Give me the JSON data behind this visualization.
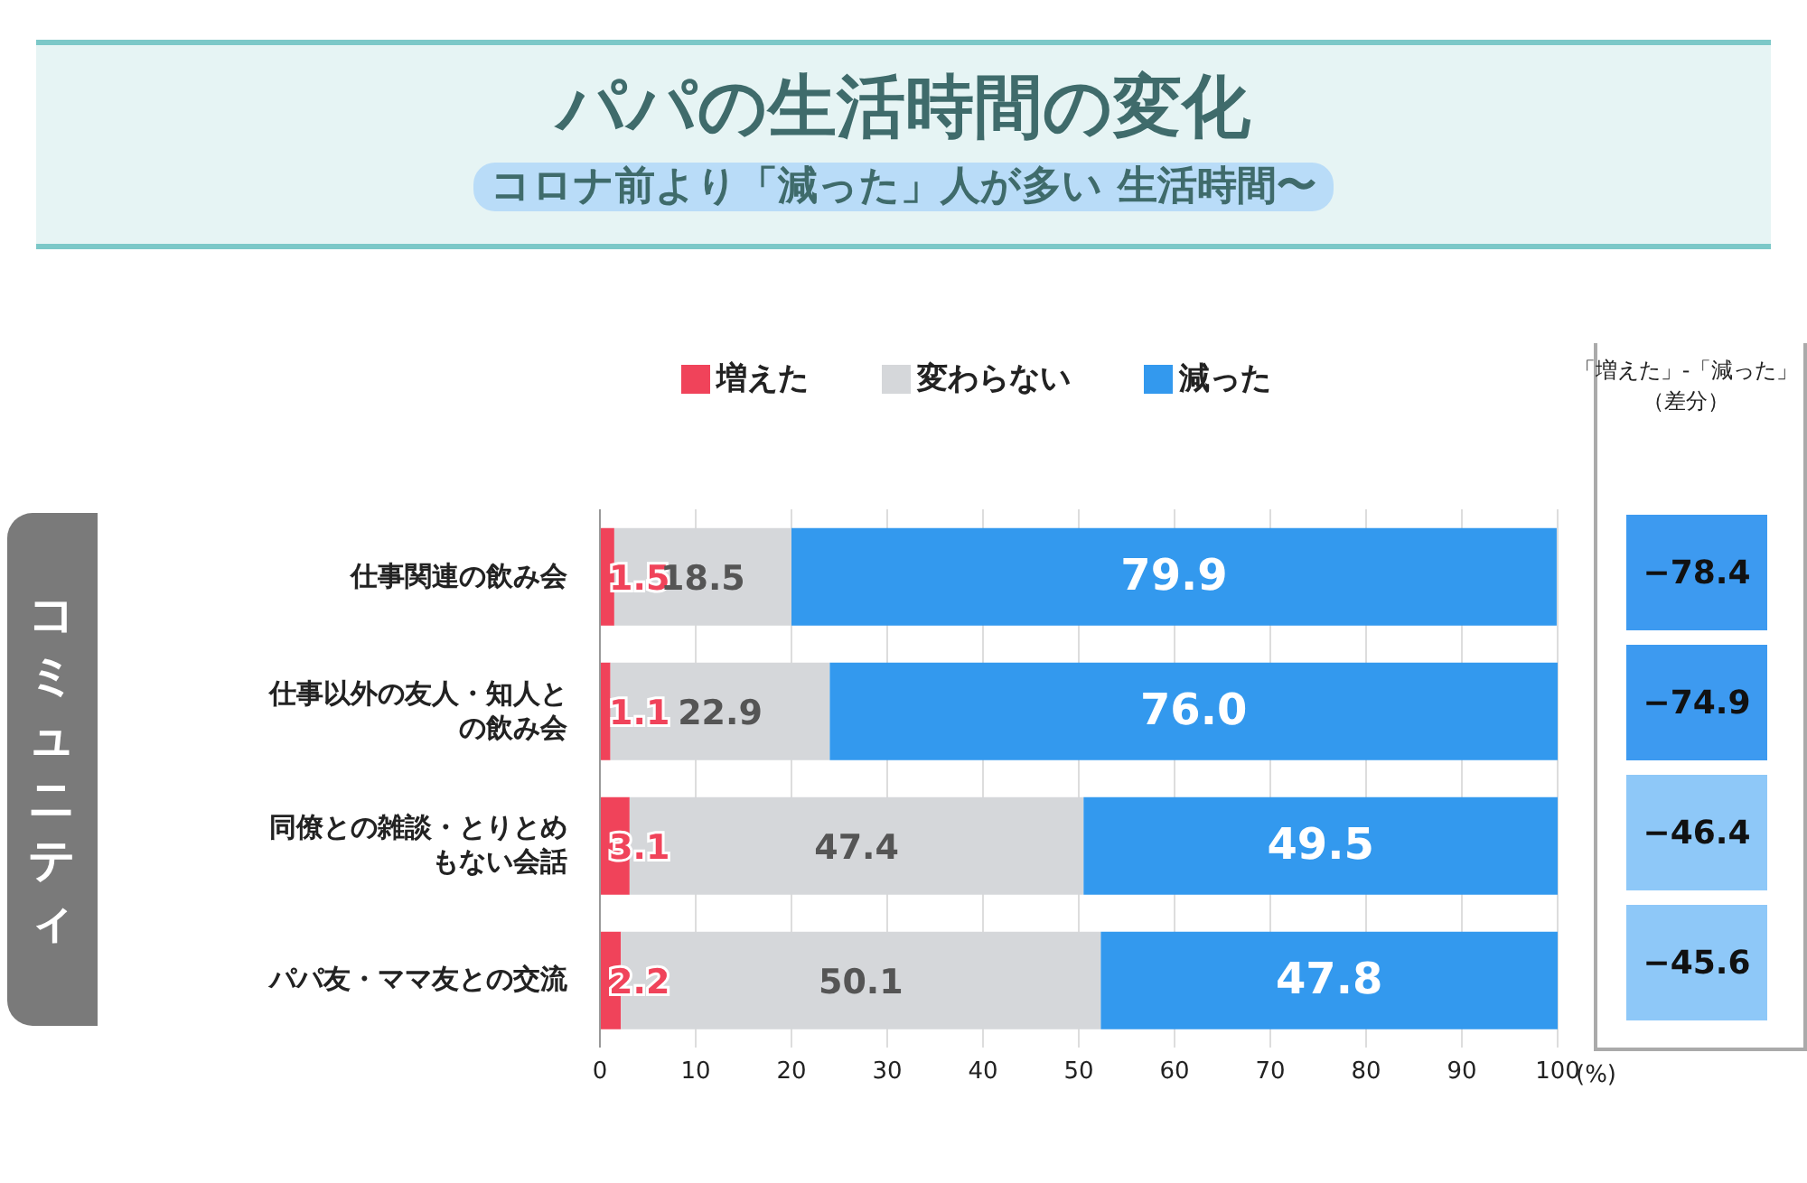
{
  "chart_data": {
    "type": "bar",
    "orientation": "horizontal",
    "stacked": true,
    "title": "パパの生活時間の変化",
    "subtitle": "コロナ前より「減った」人が多い 生活時間〜",
    "categories": [
      "仕事関連の飲み会",
      "仕事以外の友人・知人との飲み会",
      "同僚との雑談・とりとめもない会話",
      "パパ友・ママ友との交流"
    ],
    "series": [
      {
        "name": "増えた",
        "color": "#f0435a",
        "values": [
          1.5,
          1.1,
          3.1,
          2.2
        ],
        "value_labels": [
          "1.5",
          "1.1",
          "3.1",
          "2.2"
        ]
      },
      {
        "name": "変わらない",
        "color": "#d5d7da",
        "values": [
          18.5,
          22.9,
          47.4,
          50.1
        ],
        "value_labels": [
          "18.5",
          "22.9",
          "47.4",
          "50.1"
        ]
      },
      {
        "name": "減った",
        "color": "#3399ee",
        "values": [
          79.9,
          76.0,
          49.5,
          47.8
        ],
        "value_labels": [
          "79.9",
          "76.0",
          "49.5",
          "47.8"
        ]
      }
    ],
    "xlabel": "(%)",
    "xlim": [
      0,
      100
    ],
    "xticks": [
      0,
      10,
      20,
      30,
      40,
      50,
      60,
      70,
      80,
      90,
      100
    ],
    "grid": "x",
    "legend": "top",
    "data_labels": true,
    "annotations": [
      "コミュニティ",
      "「増えた」-「減った」（差分）",
      "−78.4",
      "−74.9",
      "−46.4",
      "−45.6"
    ]
  }
}
